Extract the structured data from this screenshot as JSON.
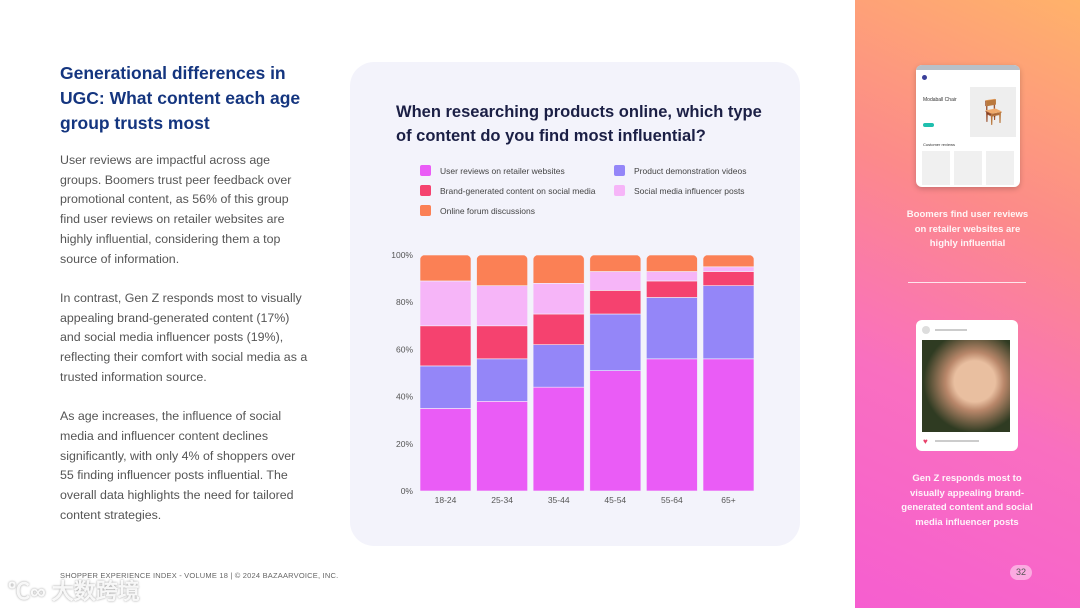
{
  "heading": "Generational differences in UGC: What content each age group trusts most",
  "paragraphs": [
    "User reviews are impactful across age groups. Boomers trust peer feedback over promotional content, as 56% of this group find user reviews on retailer websites are highly influential, considering them a top source of information.",
    "In contrast, Gen Z responds most to visually appealing brand-generated content (17%) and social media influencer posts (19%), reflecting their comfort with social media as a trusted information source.",
    "As age increases, the influence of social media and influencer content declines significantly, with only 4% of shoppers over 55 finding influencer posts influential. The overall data highlights the need for tailored content strategies."
  ],
  "footer": "SHOPPER EXPERIENCE INDEX - VOLUME 18  |  © 2024 BAZAARVOICE, INC.",
  "watermark": "大数跨境",
  "right_panel": {
    "mock_title": "Modaball Chair",
    "mock_section": "Customer reviews",
    "caption1": "Boomers find user reviews on retailer websites are highly influential",
    "caption2": "Gen Z responds most to visually appealing brand-generated content and social media influencer posts",
    "page_number": "32"
  },
  "chart_data": {
    "type": "bar",
    "stacked": true,
    "title": "When researching products online, which type of content do you find most influential?",
    "categories": [
      "18-24",
      "25-34",
      "35-44",
      "45-54",
      "55-64",
      "65+"
    ],
    "yticks": [
      "0%",
      "20%",
      "40%",
      "60%",
      "80%",
      "100%"
    ],
    "ylim": [
      0,
      100
    ],
    "legend_position": "top",
    "series": [
      {
        "name": "User reviews on retailer websites",
        "color": "#ea5cf6",
        "values": [
          35,
          38,
          44,
          51,
          56,
          56
        ]
      },
      {
        "name": "Product demonstration videos",
        "color": "#9486f8",
        "values": [
          18,
          18,
          18,
          24,
          26,
          31
        ]
      },
      {
        "name": "Brand-generated content on social media",
        "color": "#f5426f",
        "values": [
          17,
          14,
          13,
          10,
          7,
          6
        ]
      },
      {
        "name": "Social media influencer posts",
        "color": "#f6b5f8",
        "values": [
          19,
          17,
          13,
          8,
          4,
          2
        ]
      },
      {
        "name": "Online forum discussions",
        "color": "#fb8055",
        "values": [
          11,
          13,
          12,
          7,
          7,
          5
        ]
      }
    ]
  }
}
